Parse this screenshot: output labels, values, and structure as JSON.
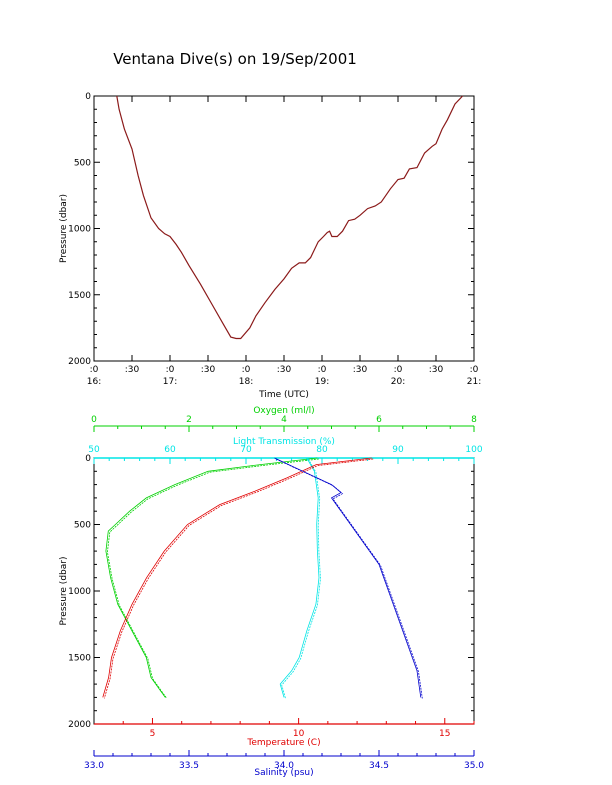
{
  "title": "Ventana Dive(s) on 19/Sep/2001",
  "colors": {
    "axes": "#000000",
    "depth_trace": "#8b1a1a",
    "oxygen": "#00d000",
    "transmission": "#00e5e5",
    "temperature": "#e00000",
    "salinity": "#0000cc"
  },
  "chart_data": [
    {
      "type": "line",
      "xlabel": "Time (UTC)",
      "ylabel": "Pressure (dbar)",
      "ylim": [
        2000,
        0
      ],
      "y_ticks": [
        "0",
        "500",
        "1000",
        "1500",
        "2000"
      ],
      "x_ticks": [
        {
          "t": 16.0,
          "top": ":0",
          "bottom": "16:"
        },
        {
          "t": 16.5,
          "top": ":30",
          "bottom": ""
        },
        {
          "t": 17.0,
          "top": ":0",
          "bottom": "17:"
        },
        {
          "t": 17.5,
          "top": ":30",
          "bottom": ""
        },
        {
          "t": 18.0,
          "top": ":0",
          "bottom": "18:"
        },
        {
          "t": 18.5,
          "top": ":30",
          "bottom": ""
        },
        {
          "t": 19.0,
          "top": ":0",
          "bottom": "19:"
        },
        {
          "t": 19.5,
          "top": ":30",
          "bottom": ""
        },
        {
          "t": 20.0,
          "top": ":0",
          "bottom": "20:"
        },
        {
          "t": 20.5,
          "top": ":30",
          "bottom": ""
        },
        {
          "t": 21.0,
          "top": ":0",
          "bottom": "21:"
        }
      ],
      "xlim": [
        16.0,
        21.0
      ],
      "series": [
        {
          "x": [
            16.3,
            16.33,
            16.4,
            16.5,
            16.58,
            16.65,
            16.75,
            16.85,
            16.93,
            17.0,
            17.08,
            17.15,
            17.25,
            17.4,
            17.55,
            17.7,
            17.8,
            17.87,
            17.93,
            18.05,
            18.13,
            18.25,
            18.38,
            18.5,
            18.6,
            18.7,
            18.78,
            18.85,
            18.95,
            19.02,
            19.07,
            19.1,
            19.13,
            19.2,
            19.27,
            19.35,
            19.43,
            19.5,
            19.6,
            19.7,
            19.78,
            19.9,
            20.0,
            20.08,
            20.15,
            20.25,
            20.35,
            20.45,
            20.5,
            20.58,
            20.65,
            20.75,
            20.85
          ],
          "y": [
            0,
            100,
            250,
            400,
            600,
            750,
            920,
            1000,
            1040,
            1060,
            1120,
            1180,
            1280,
            1420,
            1570,
            1720,
            1820,
            1830,
            1830,
            1750,
            1660,
            1560,
            1460,
            1380,
            1300,
            1260,
            1260,
            1220,
            1100,
            1060,
            1030,
            1020,
            1060,
            1060,
            1020,
            940,
            930,
            900,
            850,
            830,
            800,
            700,
            630,
            620,
            550,
            540,
            430,
            380,
            360,
            250,
            180,
            60,
            0
          ]
        }
      ]
    },
    {
      "type": "line",
      "ylabel": "Pressure (dbar)",
      "ylim": [
        2000,
        0
      ],
      "y_ticks": [
        "0",
        "500",
        "1000",
        "1500",
        "2000"
      ],
      "axes": [
        {
          "key": "oxygen",
          "label": "Oxygen (ml/l)",
          "min": 0,
          "max": 8,
          "ticks": [
            "0",
            "2",
            "4",
            "6",
            "8"
          ],
          "position": "top-outer"
        },
        {
          "key": "transmission",
          "label": "Light Transmission (%)",
          "min": 50,
          "max": 100,
          "ticks": [
            "50",
            "60",
            "70",
            "80",
            "90",
            "100"
          ],
          "position": "top-inner"
        },
        {
          "key": "temperature",
          "label": "Temperature (C)",
          "min": 3,
          "max": 16,
          "ticks": [
            "5",
            "10",
            "15"
          ],
          "tick_values": [
            5,
            10,
            15
          ],
          "position": "bottom-inner"
        },
        {
          "key": "salinity",
          "label": "Salinity (psu)",
          "min": 33.0,
          "max": 35.0,
          "ticks": [
            "33.0",
            "33.5",
            "34.0",
            "34.5",
            "35.0"
          ],
          "position": "bottom-outer"
        }
      ],
      "series": [
        {
          "key": "oxygen",
          "p": [
            0,
            50,
            100,
            200,
            300,
            400,
            500,
            550,
            700,
            900,
            1100,
            1300,
            1500,
            1650,
            1750,
            1800
          ],
          "v": [
            4.7,
            3.5,
            2.4,
            1.7,
            1.1,
            0.75,
            0.45,
            0.3,
            0.25,
            0.35,
            0.5,
            0.8,
            1.1,
            1.2,
            1.4,
            1.5
          ]
        },
        {
          "key": "transmission",
          "p": [
            0,
            100,
            300,
            500,
            700,
            900,
            1100,
            1300,
            1500,
            1600,
            1700,
            1800
          ],
          "v": [
            78,
            79,
            79.5,
            79.3,
            79.4,
            79.6,
            79.2,
            78,
            77,
            76,
            74.5,
            75
          ]
        },
        {
          "key": "temperature",
          "p": [
            0,
            50,
            150,
            250,
            350,
            500,
            700,
            900,
            1100,
            1300,
            1400,
            1500,
            1650,
            1800
          ],
          "v": [
            12.5,
            10.6,
            9.6,
            8.5,
            7.3,
            6.2,
            5.4,
            4.8,
            4.3,
            3.9,
            3.75,
            3.6,
            3.5,
            3.3
          ]
        },
        {
          "key": "salinity",
          "p": [
            0,
            100,
            200,
            260,
            300,
            400,
            600,
            800,
            1000,
            1200,
            1400,
            1600,
            1800
          ],
          "v": [
            33.95,
            34.1,
            34.25,
            34.3,
            34.25,
            34.3,
            34.4,
            34.5,
            34.55,
            34.6,
            34.65,
            34.7,
            34.72
          ]
        }
      ]
    }
  ]
}
